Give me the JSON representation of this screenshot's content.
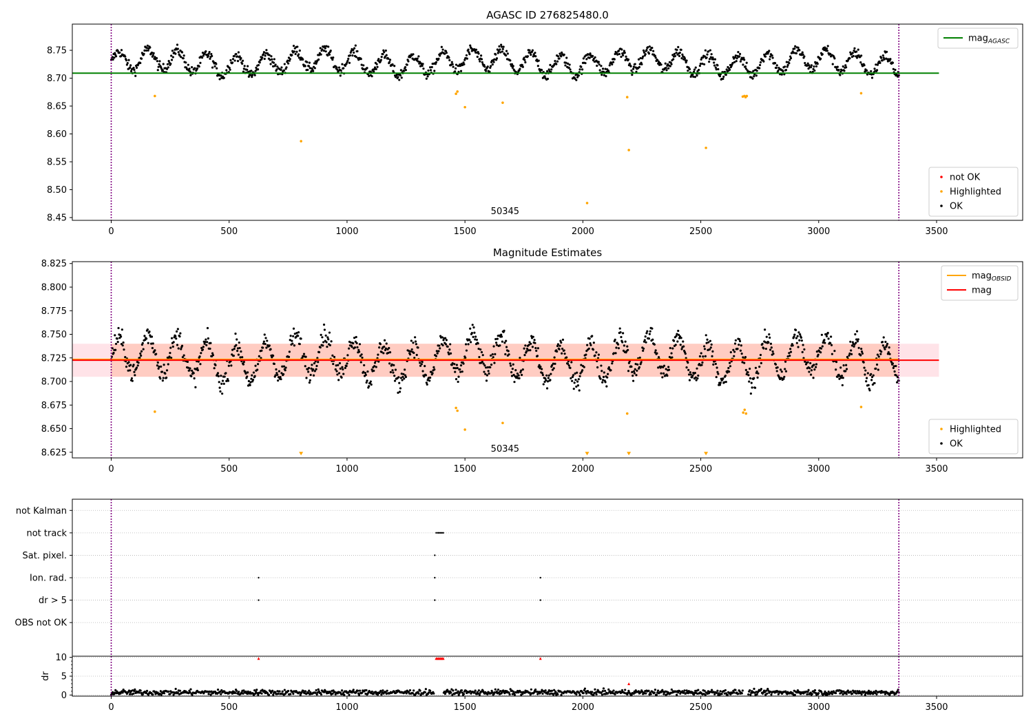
{
  "chart_data": [
    {
      "type": "scatter",
      "title": "AGASC ID 276825480.0",
      "xlim": [
        -165,
        3865
      ],
      "ylim": [
        8.445,
        8.797
      ],
      "xticks": [
        0,
        500,
        1000,
        1500,
        2000,
        2500,
        3000,
        3500
      ],
      "yticks": [
        8.45,
        8.5,
        8.55,
        8.6,
        8.65,
        8.7,
        8.75
      ],
      "x": [
        -165,
        3865
      ],
      "grid": false,
      "vlines": [
        0,
        3340
      ],
      "obsid_label": {
        "text": "50345",
        "x": 1670
      },
      "lines": [
        {
          "name": "mag_AGASC",
          "y": 8.709,
          "x_range": [
            -165,
            3510
          ],
          "color": "#008000"
        }
      ],
      "legends": [
        {
          "position": "upper-right",
          "entries": [
            {
              "label": "mag",
              "sub": "AGASC",
              "color": "#008000",
              "kind": "line"
            }
          ]
        },
        {
          "position": "lower-right",
          "entries": [
            {
              "label": "not OK",
              "color": "#ff0000",
              "kind": "dot"
            },
            {
              "label": "Highlighted",
              "color": "#ffa500",
              "kind": "dot"
            },
            {
              "label": "OK",
              "color": "#000000",
              "kind": "dot"
            }
          ]
        }
      ],
      "series": [
        {
          "name": "OK",
          "color": "#000000",
          "kind": "seasonal",
          "base": 8.728,
          "amp": 0.018,
          "period": 125,
          "noise": 0.008,
          "n": 1300,
          "x_range": [
            0,
            3340
          ]
        },
        {
          "name": "Highlighted",
          "color": "#ffa500",
          "points": [
            [
              185,
              8.668
            ],
            [
              805,
              8.587
            ],
            [
              1462,
              8.672
            ],
            [
              1468,
              8.676
            ],
            [
              1500,
              8.648
            ],
            [
              1660,
              8.656
            ],
            [
              2018,
              8.476
            ],
            [
              2188,
              8.666
            ],
            [
              2195,
              8.571
            ],
            [
              2522,
              8.575
            ],
            [
              2678,
              8.667
            ],
            [
              2685,
              8.668
            ],
            [
              2690,
              8.666
            ],
            [
              2695,
              8.668
            ],
            [
              3180,
              8.673
            ]
          ]
        }
      ]
    },
    {
      "type": "scatter",
      "title": "Magnitude Estimates",
      "xlim": [
        -165,
        3865
      ],
      "ylim": [
        8.619,
        8.827
      ],
      "xticks": [
        0,
        500,
        1000,
        1500,
        2000,
        2500,
        3000,
        3500
      ],
      "yticks": [
        8.625,
        8.65,
        8.675,
        8.7,
        8.725,
        8.75,
        8.775,
        8.8,
        8.825
      ],
      "grid": false,
      "vlines": [
        0,
        3340
      ],
      "obsid_label": {
        "text": "50345",
        "x": 1670
      },
      "band": {
        "y_range": [
          8.705,
          8.74
        ],
        "x_range": [
          -165,
          3510
        ]
      },
      "lines": [
        {
          "name": "mag_OBSID",
          "y": 8.7235,
          "x_range": [
            -165,
            3340
          ],
          "color": "#ffa500"
        },
        {
          "name": "mag",
          "y": 8.7225,
          "x_range": [
            -165,
            3510
          ],
          "color": "#ff0000"
        }
      ],
      "legends": [
        {
          "position": "upper-right",
          "entries": [
            {
              "label": "mag",
              "sub": "OBSID",
              "color": "#ffa500",
              "kind": "line"
            },
            {
              "label": "mag",
              "color": "#ff0000",
              "kind": "line"
            }
          ]
        },
        {
          "position": "lower-right",
          "entries": [
            {
              "label": "Highlighted",
              "color": "#ffa500",
              "kind": "dot"
            },
            {
              "label": "OK",
              "color": "#000000",
              "kind": "dot"
            }
          ]
        }
      ],
      "series": [
        {
          "name": "OK",
          "color": "#000000",
          "kind": "seasonal",
          "base": 8.724,
          "amp": 0.02,
          "period": 125,
          "noise": 0.009,
          "n": 1300,
          "x_range": [
            0,
            3340
          ]
        },
        {
          "name": "Highlighted",
          "color": "#ffa500",
          "points": [
            [
              185,
              8.668
            ],
            [
              1462,
              8.672
            ],
            [
              1468,
              8.669
            ],
            [
              1500,
              8.649
            ],
            [
              1660,
              8.656
            ],
            [
              2188,
              8.666
            ],
            [
              2680,
              8.667
            ],
            [
              2686,
              8.67
            ],
            [
              2692,
              8.666
            ],
            [
              3180,
              8.673
            ]
          ]
        },
        {
          "name": "Highlighted (below range)",
          "color": "#ffa500",
          "marker": "triangle-down",
          "points": [
            [
              805,
              8.621
            ],
            [
              2018,
              8.621
            ],
            [
              2195,
              8.621
            ],
            [
              2522,
              8.621
            ]
          ]
        }
      ]
    },
    {
      "type": "scatter",
      "title": "",
      "xlim": [
        -165,
        3865
      ],
      "ylim": [
        -0.5,
        6.5
      ],
      "xticks": [
        0,
        500,
        1000,
        1500,
        2000,
        2500,
        3000,
        3500
      ],
      "yticks": [
        1,
        2,
        3,
        4,
        5,
        6
      ],
      "ytick_labels": [
        "OBS not OK",
        "dr > 5",
        "Ion. rad.",
        "Sat. pixel.",
        "not track",
        "not Kalman"
      ],
      "grid": true,
      "vlines": [
        0,
        3340
      ],
      "series": [
        {
          "name": "flags",
          "color": "#000000",
          "points": [
            [
              625,
              2
            ],
            [
              625,
              3
            ],
            [
              1372,
              2
            ],
            [
              1372,
              3
            ],
            [
              1372,
              4
            ],
            [
              1378,
              5
            ],
            [
              1385,
              5
            ],
            [
              1390,
              5
            ],
            [
              1396,
              5
            ],
            [
              1402,
              5
            ],
            [
              1408,
              5
            ],
            [
              1820,
              2
            ],
            [
              1820,
              3
            ]
          ]
        }
      ]
    },
    {
      "type": "scatter",
      "title": "",
      "ylabel": "dr",
      "xlim": [
        -165,
        3865
      ],
      "ylim": [
        -0.3,
        10.3
      ],
      "xticks": [
        0,
        500,
        1000,
        1500,
        2000,
        2500,
        3000,
        3500
      ],
      "yticks": [
        0,
        5,
        10
      ],
      "grid": true,
      "vlines": [
        0,
        3340
      ],
      "series": [
        {
          "name": "dr",
          "color": "#000000",
          "kind": "noise",
          "base": 0.7,
          "noise": 0.35,
          "n": 1100,
          "x_range": [
            0,
            3340
          ],
          "gaps": [
            [
              1370,
              1410
            ],
            [
              2680,
              2700
            ]
          ]
        },
        {
          "name": "not OK",
          "color": "#ff0000",
          "points": [
            [
              625,
              9.7
            ],
            [
              1378,
              9.7
            ],
            [
              1383,
              9.7
            ],
            [
              1388,
              9.7
            ],
            [
              1393,
              9.7
            ],
            [
              1398,
              9.7
            ],
            [
              1403,
              9.7
            ],
            [
              1408,
              9.7
            ],
            [
              1820,
              9.7
            ],
            [
              2195,
              3.0
            ]
          ]
        }
      ]
    }
  ]
}
